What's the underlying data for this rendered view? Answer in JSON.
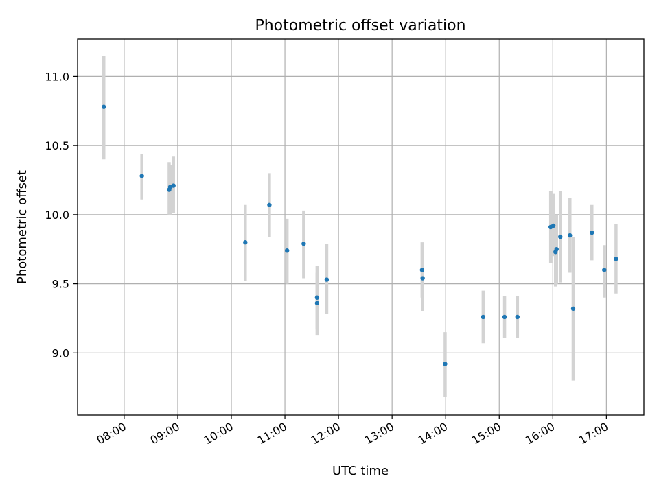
{
  "chart_data": {
    "type": "scatter",
    "title": "Photometric offset variation",
    "xlabel": "UTC time",
    "ylabel": "Photometric offset",
    "xlim_hours": [
      7.13,
      17.7
    ],
    "ylim": [
      8.55,
      11.27
    ],
    "x_ticks": [
      {
        "hour": 8,
        "label": "08:00"
      },
      {
        "hour": 9,
        "label": "09:00"
      },
      {
        "hour": 10,
        "label": "10:00"
      },
      {
        "hour": 11,
        "label": "11:00"
      },
      {
        "hour": 12,
        "label": "12:00"
      },
      {
        "hour": 13,
        "label": "13:00"
      },
      {
        "hour": 14,
        "label": "14:00"
      },
      {
        "hour": 15,
        "label": "15:00"
      },
      {
        "hour": 16,
        "label": "16:00"
      },
      {
        "hour": 17,
        "label": "17:00"
      }
    ],
    "y_ticks": [
      {
        "value": 9.0,
        "label": "9.0"
      },
      {
        "value": 9.5,
        "label": "9.5"
      },
      {
        "value": 10.0,
        "label": "10.0"
      },
      {
        "value": 10.5,
        "label": "10.5"
      },
      {
        "value": 11.0,
        "label": "11.0"
      }
    ],
    "grid": true,
    "marker_color": "#1f77b4",
    "errorbar_color": "#d3d3d3",
    "points": [
      {
        "x": 7.62,
        "y": 10.78,
        "lo": 10.4,
        "hi": 11.15
      },
      {
        "x": 8.33,
        "y": 10.28,
        "lo": 10.11,
        "hi": 10.44
      },
      {
        "x": 8.84,
        "y": 10.18,
        "lo": 10.0,
        "hi": 10.38
      },
      {
        "x": 8.86,
        "y": 10.2,
        "lo": 10.0,
        "hi": 10.36
      },
      {
        "x": 8.92,
        "y": 10.21,
        "lo": 10.01,
        "hi": 10.42
      },
      {
        "x": 10.26,
        "y": 9.8,
        "lo": 9.52,
        "hi": 10.07
      },
      {
        "x": 10.71,
        "y": 10.07,
        "lo": 9.84,
        "hi": 10.3
      },
      {
        "x": 11.04,
        "y": 9.74,
        "lo": 9.5,
        "hi": 9.97
      },
      {
        "x": 11.35,
        "y": 9.79,
        "lo": 9.54,
        "hi": 10.03
      },
      {
        "x": 11.6,
        "y": 9.4,
        "lo": 9.17,
        "hi": 9.63
      },
      {
        "x": 11.6,
        "y": 9.36,
        "lo": 9.13,
        "hi": 9.58
      },
      {
        "x": 11.78,
        "y": 9.53,
        "lo": 9.28,
        "hi": 9.79
      },
      {
        "x": 13.56,
        "y": 9.6,
        "lo": 9.4,
        "hi": 9.8
      },
      {
        "x": 13.57,
        "y": 9.54,
        "lo": 9.3,
        "hi": 9.77
      },
      {
        "x": 13.99,
        "y": 8.92,
        "lo": 8.68,
        "hi": 9.15
      },
      {
        "x": 14.7,
        "y": 9.26,
        "lo": 9.07,
        "hi": 9.45
      },
      {
        "x": 15.1,
        "y": 9.26,
        "lo": 9.11,
        "hi": 9.41
      },
      {
        "x": 15.34,
        "y": 9.26,
        "lo": 9.11,
        "hi": 9.41
      },
      {
        "x": 15.96,
        "y": 9.91,
        "lo": 9.65,
        "hi": 10.17
      },
      {
        "x": 16.01,
        "y": 9.92,
        "lo": 9.7,
        "hi": 10.15
      },
      {
        "x": 16.05,
        "y": 9.73,
        "lo": 9.48,
        "hi": 9.98
      },
      {
        "x": 16.07,
        "y": 9.75,
        "lo": 9.5,
        "hi": 10.0
      },
      {
        "x": 16.14,
        "y": 9.84,
        "lo": 9.51,
        "hi": 10.17
      },
      {
        "x": 16.32,
        "y": 9.85,
        "lo": 9.58,
        "hi": 10.12
      },
      {
        "x": 16.38,
        "y": 9.32,
        "lo": 8.8,
        "hi": 9.84
      },
      {
        "x": 16.73,
        "y": 9.87,
        "lo": 9.67,
        "hi": 10.07
      },
      {
        "x": 16.96,
        "y": 9.6,
        "lo": 9.4,
        "hi": 9.78
      },
      {
        "x": 17.18,
        "y": 9.68,
        "lo": 9.43,
        "hi": 9.93
      }
    ]
  }
}
